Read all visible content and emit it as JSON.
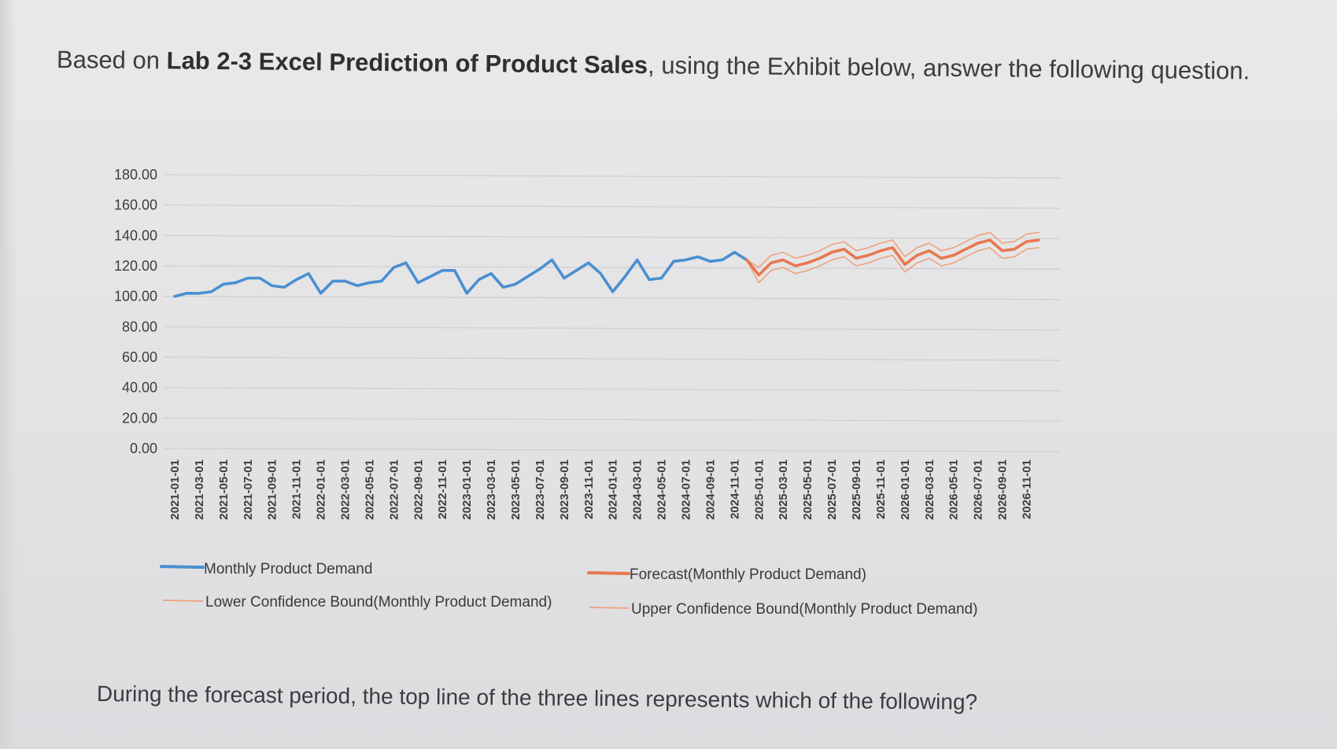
{
  "header": {
    "prefix": "Based on ",
    "bold": "Lab 2-3 Excel Prediction of Product Sales",
    "suffix": ", using the Exhibit below, answer the following question."
  },
  "footer": {
    "question": "During the forecast period, the top line of the three lines represents which of the following?"
  },
  "colors": {
    "demand": "#4a8fd1",
    "forecast": "#e8774f",
    "lower_bound": "#eea27f",
    "upper_bound": "#eea27f",
    "grid": "#cfcfd2"
  },
  "chart_data": {
    "type": "line",
    "ylim": [
      0,
      180
    ],
    "y_ticks": [
      "0.00",
      "20.00",
      "40.00",
      "60.00",
      "80.00",
      "100.00",
      "120.00",
      "140.00",
      "160.00",
      "180.00"
    ],
    "y_tick_values": [
      0,
      20,
      40,
      60,
      80,
      100,
      120,
      140,
      160,
      180
    ],
    "x_tick_labels": [
      "2021-01-01",
      "2021-03-01",
      "2021-05-01",
      "2021-07-01",
      "2021-09-01",
      "2021-11-01",
      "2022-01-01",
      "2022-03-01",
      "2022-05-01",
      "2022-07-01",
      "2022-09-01",
      "2022-11-01",
      "2023-01-01",
      "2023-03-01",
      "2023-05-01",
      "2023-07-01",
      "2023-09-01",
      "2023-11-01",
      "2024-01-01",
      "2024-03-01",
      "2024-05-01",
      "2024-07-01",
      "2024-09-01",
      "2024-11-01",
      "2025-01-01",
      "2025-03-01",
      "2025-05-01",
      "2025-07-01",
      "2025-09-01",
      "2025-11-01",
      "2026-01-01",
      "2026-03-01",
      "2026-05-01",
      "2026-07-01",
      "2026-09-01",
      "2026-11-01"
    ],
    "grid": true,
    "legend_placement": "bottom",
    "series": [
      {
        "name": "Monthly Product Demand",
        "x": [
          "2021-01-01",
          "2021-02-01",
          "2021-03-01",
          "2021-04-01",
          "2021-05-01",
          "2021-06-01",
          "2021-07-01",
          "2021-08-01",
          "2021-09-01",
          "2021-10-01",
          "2021-11-01",
          "2021-12-01",
          "2022-01-01",
          "2022-02-01",
          "2022-03-01",
          "2022-04-01",
          "2022-05-01",
          "2022-06-01",
          "2022-07-01",
          "2022-08-01",
          "2022-09-01",
          "2022-10-01",
          "2022-11-01",
          "2022-12-01",
          "2023-01-01",
          "2023-02-01",
          "2023-03-01",
          "2023-04-01",
          "2023-05-01",
          "2023-06-01",
          "2023-07-01",
          "2023-08-01",
          "2023-09-01",
          "2023-10-01",
          "2023-11-01",
          "2023-12-01",
          "2024-01-01",
          "2024-02-01",
          "2024-03-01",
          "2024-04-01",
          "2024-05-01",
          "2024-06-01",
          "2024-07-01",
          "2024-08-01",
          "2024-09-01",
          "2024-10-01",
          "2024-11-01",
          "2024-12-01"
        ],
        "values": [
          100,
          102,
          102,
          103,
          108,
          109,
          112,
          112,
          107,
          106,
          111,
          115,
          102,
          110,
          110,
          107,
          109,
          110,
          119,
          122,
          109,
          113,
          117,
          117,
          102,
          111,
          115,
          106,
          108,
          113,
          118,
          124,
          112,
          117,
          122,
          115,
          103,
          113,
          124,
          111,
          112,
          123,
          124,
          126,
          123,
          124,
          129,
          124
        ]
      },
      {
        "name": "Forecast(Monthly Product Demand)",
        "x": [
          "2024-12-01",
          "2025-01-01",
          "2025-02-01",
          "2025-03-01",
          "2025-04-01",
          "2025-05-01",
          "2025-06-01",
          "2025-07-01",
          "2025-08-01",
          "2025-09-01",
          "2025-10-01",
          "2025-11-01",
          "2025-12-01",
          "2026-01-01",
          "2026-02-01",
          "2026-03-01",
          "2026-04-01",
          "2026-05-01",
          "2026-06-01",
          "2026-07-01",
          "2026-08-01",
          "2026-09-01",
          "2026-10-01",
          "2026-11-01",
          "2026-12-01"
        ],
        "values": [
          124,
          114,
          122,
          124,
          120,
          122,
          125,
          129,
          131,
          125,
          127,
          130,
          132,
          121,
          127,
          130,
          125,
          127,
          131,
          135,
          137,
          130,
          131,
          136,
          137
        ]
      },
      {
        "name": "Lower Confidence Bound(Monthly Product Demand)",
        "x": [
          "2024-12-01",
          "2025-01-01",
          "2025-02-01",
          "2025-03-01",
          "2025-04-01",
          "2025-05-01",
          "2025-06-01",
          "2025-07-01",
          "2025-08-01",
          "2025-09-01",
          "2025-10-01",
          "2025-11-01",
          "2025-12-01",
          "2026-01-01",
          "2026-02-01",
          "2026-03-01",
          "2026-04-01",
          "2026-05-01",
          "2026-06-01",
          "2026-07-01",
          "2026-08-01",
          "2026-09-01",
          "2026-10-01",
          "2026-11-01",
          "2026-12-01"
        ],
        "values": [
          124,
          109,
          117,
          119,
          115,
          117,
          120,
          124,
          126,
          120,
          122,
          125,
          127,
          116,
          122,
          125,
          120,
          122,
          126,
          130,
          132,
          125,
          126,
          131,
          132
        ]
      },
      {
        "name": "Upper Confidence Bound(Monthly Product Demand)",
        "x": [
          "2024-12-01",
          "2025-01-01",
          "2025-02-01",
          "2025-03-01",
          "2025-04-01",
          "2025-05-01",
          "2025-06-01",
          "2025-07-01",
          "2025-08-01",
          "2025-09-01",
          "2025-10-01",
          "2025-11-01",
          "2025-12-01",
          "2026-01-01",
          "2026-02-01",
          "2026-03-01",
          "2026-04-01",
          "2026-05-01",
          "2026-06-01",
          "2026-07-01",
          "2026-08-01",
          "2026-09-01",
          "2026-10-01",
          "2026-11-01",
          "2026-12-01"
        ],
        "values": [
          124,
          119,
          127,
          129,
          125,
          127,
          130,
          134,
          136,
          130,
          132,
          135,
          137,
          126,
          132,
          135,
          130,
          132,
          136,
          140,
          142,
          135,
          136,
          141,
          142
        ]
      }
    ]
  }
}
